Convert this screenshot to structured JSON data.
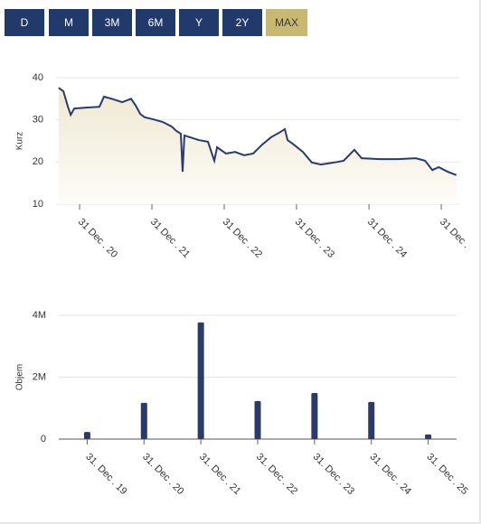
{
  "buttons": [
    "D",
    "M",
    "3M",
    "6M",
    "Y",
    "2Y",
    "MAX"
  ],
  "active_button": 6,
  "chart_data": [
    {
      "type": "line",
      "ylabel": "Kurz",
      "color": "#2a3b6b",
      "area": true,
      "grid": true,
      "x": [
        "2020-09-16",
        "2020-10-10",
        "2020-11-02",
        "2020-11-16",
        "2020-12-04",
        "2021-02-01",
        "2021-04-10",
        "2021-05-03",
        "2021-06-18",
        "2021-08-03",
        "2021-09-17",
        "2021-10-10",
        "2021-11-02",
        "2021-11-25",
        "2022-01-09",
        "2022-02-24",
        "2022-04-10",
        "2022-05-03",
        "2022-05-26",
        "2022-06-04",
        "2022-06-13",
        "2022-07-10",
        "2022-08-25",
        "2022-10-10",
        "2022-11-11",
        "2022-11-25",
        "2023-01-09",
        "2023-02-24",
        "2023-04-10",
        "2023-05-26",
        "2023-07-10",
        "2023-08-25",
        "2023-10-10",
        "2023-11-02",
        "2023-11-16",
        "2023-12-18",
        "2024-02-01",
        "2024-03-17",
        "2024-05-02",
        "2024-07-10",
        "2024-08-25",
        "2024-10-18",
        "2024-11-24",
        "2025-02-24",
        "2025-05-26",
        "2025-08-25",
        "2025-10-10",
        "2025-11-16",
        "2025-12-18",
        "2026-02-01",
        "2026-03-17"
      ],
      "values": [
        37.6,
        36.8,
        33.1,
        31.2,
        32.7,
        32.9,
        33.1,
        35.5,
        34.9,
        34.2,
        35,
        33.4,
        31.4,
        30.6,
        30.1,
        29.5,
        28.4,
        27.4,
        26.7,
        17.7,
        26.3,
        25.9,
        25.2,
        24.8,
        20.3,
        23.5,
        22,
        22.4,
        21.6,
        22,
        24.1,
        25.9,
        27.1,
        27.8,
        25.2,
        24.1,
        22.4,
        19.9,
        19.4,
        19.9,
        20.3,
        22.9,
        20.9,
        20.7,
        20.7,
        20.9,
        20.3,
        18.1,
        18.8,
        17.7,
        16.9
      ],
      "xlim": [
        "2020-09-03",
        "2026-04-01"
      ],
      "xticks": [
        {
          "value": "2020-12-31",
          "label": "31 Dec . 20"
        },
        {
          "value": "2021-12-31",
          "label": "31 Dec . 21"
        },
        {
          "value": "2022-12-31",
          "label": "31 Dec . 22"
        },
        {
          "value": "2023-12-31",
          "label": "31 Dec . 23"
        },
        {
          "value": "2024-12-31",
          "label": "31 Dec . 24"
        },
        {
          "value": "2025-12-31",
          "label": "31 Dec ."
        }
      ],
      "ylim": [
        10,
        40
      ],
      "yticks": [
        10,
        20,
        30,
        40
      ]
    },
    {
      "type": "bar",
      "ylabel": "Objem",
      "color": "#2a3b6b",
      "grid": true,
      "categories": [
        "31. Dec . 19",
        "31. Dec . 20",
        "31. Dec . 21",
        "31. Dec . 22",
        "31. Dec . 23",
        "31. Dec . 24",
        "31. Dec . 25"
      ],
      "values": [
        230000,
        1170000,
        3770000,
        1230000,
        1490000,
        1200000,
        150000
      ],
      "ylim": [
        0,
        4000000
      ],
      "yticks": [
        0,
        {
          "value": 2000000,
          "label": "2M"
        },
        {
          "value": 4000000,
          "label": "4M"
        }
      ]
    }
  ]
}
